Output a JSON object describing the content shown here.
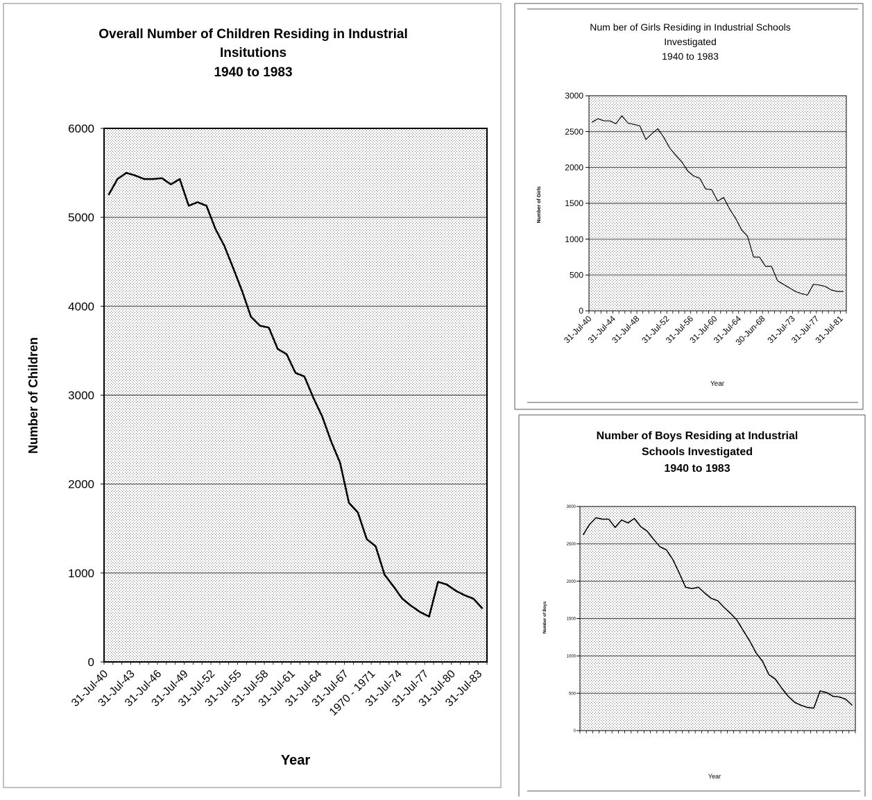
{
  "colors": {
    "line": "#000000",
    "grid": "#555555",
    "plot_bg": "#e6e6e6",
    "background": "#ffffff"
  },
  "chart_data": [
    {
      "id": "overall",
      "type": "line",
      "title": "Overall Number of Children Residing in Industrial Insitutions 1940 to 1983",
      "title_lines": [
        "Overall Number of Children Residing in Industrial",
        "Insitutions",
        "1940 to 1983"
      ],
      "xlabel": "Year",
      "ylabel": "Number of Children",
      "ylim": [
        0,
        6000
      ],
      "y_ticks": [
        0,
        1000,
        2000,
        3000,
        4000,
        5000,
        6000
      ],
      "grid": true,
      "x_tick_labels": [
        "31-Jul-40",
        "31-Jul-43",
        "31-Jul-46",
        "31-Jul-49",
        "31-Jul-52",
        "31-Jul-55",
        "31-Jul-58",
        "31-Jul-61",
        "31-Jul-64",
        "31-Jul-67",
        "1970 - 1971",
        "31-Jul-74",
        "31-Jul-77",
        "31-Jul-80",
        "31-Jul-83"
      ],
      "series": [
        {
          "values": [
            5250,
            5430,
            5500,
            5470,
            5430,
            5430,
            5440,
            5370,
            5430,
            5130,
            5170,
            5130,
            4870,
            4680,
            4430,
            4170,
            3880,
            3780,
            3760,
            3520,
            3460,
            3250,
            3210,
            2970,
            2760,
            2480,
            2240,
            1790,
            1680,
            1380,
            1300,
            980,
            850,
            710,
            630,
            560,
            510,
            900,
            870,
            800,
            750,
            710,
            600
          ]
        }
      ]
    },
    {
      "id": "girls",
      "type": "line",
      "title": "Num ber of Girls Residing in Industrial Schools Investigated 1940 to 1983",
      "title_lines": [
        "Num ber of Girls Residing in Industrial Schools",
        "Investigated",
        "1940 to 1983"
      ],
      "xlabel": "Year",
      "ylabel": "Number of Girls",
      "ylim": [
        0,
        3000
      ],
      "y_ticks": [
        0,
        500,
        1000,
        1500,
        2000,
        2500,
        3000
      ],
      "grid": true,
      "x_tick_labels": [
        "31-Jul-40",
        "31-Jul-44",
        "31-Jul-48",
        "31-Jul-52",
        "31-Jul-56",
        "31-Jul-60",
        "31-Jul-64",
        "30-Jun-68",
        "31-Jul-73",
        "31-Jul-77",
        "31-Jul-81"
      ],
      "series": [
        {
          "values": [
            2630,
            2680,
            2650,
            2650,
            2610,
            2720,
            2620,
            2600,
            2580,
            2390,
            2470,
            2540,
            2420,
            2270,
            2170,
            2080,
            1950,
            1880,
            1850,
            1700,
            1690,
            1530,
            1580,
            1420,
            1290,
            1130,
            1040,
            750,
            750,
            620,
            620,
            420,
            370,
            320,
            270,
            240,
            220,
            370,
            360,
            340,
            290,
            270,
            270
          ]
        }
      ]
    },
    {
      "id": "boys",
      "type": "line",
      "title": "Number of Boys Residing at Industrial Schools Investigated 1940 to 1983",
      "title_lines": [
        "Number of Boys Residing at Industrial",
        "Schools Investigated",
        "1940 to 1983"
      ],
      "xlabel": "Year",
      "ylabel": "Number of Boys",
      "ylim": [
        0,
        3000
      ],
      "y_ticks": [
        0,
        500,
        1000,
        1500,
        2000,
        2500,
        3000
      ],
      "grid": true,
      "x_tick_labels": [],
      "series": [
        {
          "values": [
            2620,
            2760,
            2850,
            2830,
            2830,
            2720,
            2820,
            2780,
            2840,
            2730,
            2670,
            2560,
            2460,
            2420,
            2290,
            2110,
            1920,
            1900,
            1920,
            1840,
            1770,
            1740,
            1650,
            1570,
            1480,
            1340,
            1200,
            1040,
            930,
            750,
            690,
            570,
            460,
            380,
            340,
            310,
            300,
            530,
            510,
            460,
            450,
            420,
            340
          ]
        }
      ]
    }
  ]
}
